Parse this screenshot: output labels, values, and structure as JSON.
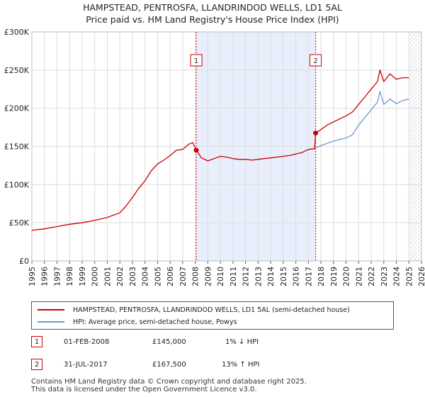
{
  "header": {
    "title": "HAMPSTEAD, PENTROSFA, LLANDRINDOD WELLS, LD1 5AL",
    "subtitle": "Price paid vs. HM Land Registry's House Price Index (HPI)"
  },
  "chart_data": {
    "type": "line",
    "title": "HAMPSTEAD, PENTROSFA, LLANDRINDOD WELLS, LD1 5AL",
    "subtitle": "Price paid vs. HM Land Registry's House Price Index (HPI)",
    "xlabel": "",
    "ylabel": "",
    "xlim": [
      1995,
      2026
    ],
    "ylim": [
      0,
      300000
    ],
    "x_ticks": [
      1995,
      1996,
      1997,
      1998,
      1999,
      2000,
      2001,
      2002,
      2003,
      2004,
      2005,
      2006,
      2007,
      2008,
      2009,
      2010,
      2011,
      2012,
      2013,
      2014,
      2015,
      2016,
      2017,
      2018,
      2019,
      2020,
      2021,
      2022,
      2023,
      2024,
      2025,
      2026
    ],
    "y_ticks": [
      {
        "value": 0,
        "label": "£0"
      },
      {
        "value": 50000,
        "label": "£50K"
      },
      {
        "value": 100000,
        "label": "£100K"
      },
      {
        "value": 150000,
        "label": "£150K"
      },
      {
        "value": 200000,
        "label": "£200K"
      },
      {
        "value": 250000,
        "label": "£250K"
      },
      {
        "value": 300000,
        "label": "£300K"
      }
    ],
    "grid": true,
    "shaded_period": {
      "start": 2008.08,
      "end": 2017.58
    },
    "future_hatch_start": 2025.0,
    "series": [
      {
        "name": "HAMPSTEAD, PENTROSFA, LLANDRINDOD WELLS, LD1 5AL (semi-detached house)",
        "color": "#cc0000",
        "x": [
          1995.0,
          1996.0,
          1997.0,
          1998.0,
          1999.0,
          2000.0,
          2001.0,
          2002.0,
          2002.5,
          2003.0,
          2003.5,
          2004.0,
          2004.5,
          2005.0,
          2005.5,
          2006.0,
          2006.5,
          2007.0,
          2007.5,
          2007.8,
          2008.08,
          2008.5,
          2009.0,
          2009.5,
          2010.0,
          2010.5,
          2011.0,
          2011.5,
          2012.0,
          2012.5,
          2013.0,
          2013.5,
          2014.0,
          2014.5,
          2015.0,
          2015.5,
          2016.0,
          2016.5,
          2017.0,
          2017.5,
          2017.58,
          2018.0,
          2018.5,
          2019.0,
          2019.5,
          2020.0,
          2020.5,
          2021.0,
          2021.5,
          2022.0,
          2022.5,
          2022.7,
          2023.0,
          2023.5,
          2024.0,
          2024.5,
          2025.0
        ],
        "y": [
          40000,
          42000,
          45000,
          48000,
          50000,
          53000,
          57000,
          63000,
          72000,
          83000,
          95000,
          105000,
          118000,
          127000,
          132000,
          138000,
          145000,
          146000,
          153000,
          155000,
          145000,
          135000,
          131000,
          134000,
          137000,
          136000,
          134000,
          133000,
          133000,
          132000,
          133000,
          134000,
          135000,
          136000,
          137000,
          138000,
          140000,
          142000,
          146000,
          147000,
          167500,
          172000,
          178000,
          182000,
          186000,
          190000,
          195000,
          205000,
          215000,
          225000,
          235000,
          250000,
          235000,
          245000,
          238000,
          240000,
          240000
        ]
      },
      {
        "name": "HPI: Average price, semi-detached house, Powys",
        "color": "#6a9ad4",
        "x": [
          2017.58,
          2018.0,
          2018.5,
          2019.0,
          2019.5,
          2020.0,
          2020.5,
          2021.0,
          2021.5,
          2022.0,
          2022.5,
          2022.7,
          2023.0,
          2023.5,
          2024.0,
          2024.5,
          2025.0
        ],
        "y": [
          148000,
          151000,
          154000,
          157000,
          159000,
          161000,
          165000,
          178000,
          188000,
          198000,
          208000,
          222000,
          205000,
          212000,
          206000,
          210000,
          212000
        ]
      }
    ],
    "transactions": [
      {
        "id": "1",
        "x": 2008.08,
        "y": 145000,
        "date": "01-FEB-2008",
        "price": "£145,000",
        "hpi": "1% ↓ HPI"
      },
      {
        "id": "2",
        "x": 2017.58,
        "y": 167500,
        "date": "31-JUL-2017",
        "price": "£167,500",
        "hpi": "13% ↑ HPI"
      }
    ]
  },
  "legend": {
    "items": [
      {
        "label": "HAMPSTEAD, PENTROSFA, LLANDRINDOD WELLS, LD1 5AL (semi-detached house)",
        "color": "#cc0000"
      },
      {
        "label": "HPI: Average price, semi-detached house, Powys",
        "color": "#6a9ad4"
      }
    ]
  },
  "footer": {
    "line1": "Contains HM Land Registry data © Crown copyright and database right 2025.",
    "line2": "This data is licensed under the Open Government Licence v3.0."
  }
}
